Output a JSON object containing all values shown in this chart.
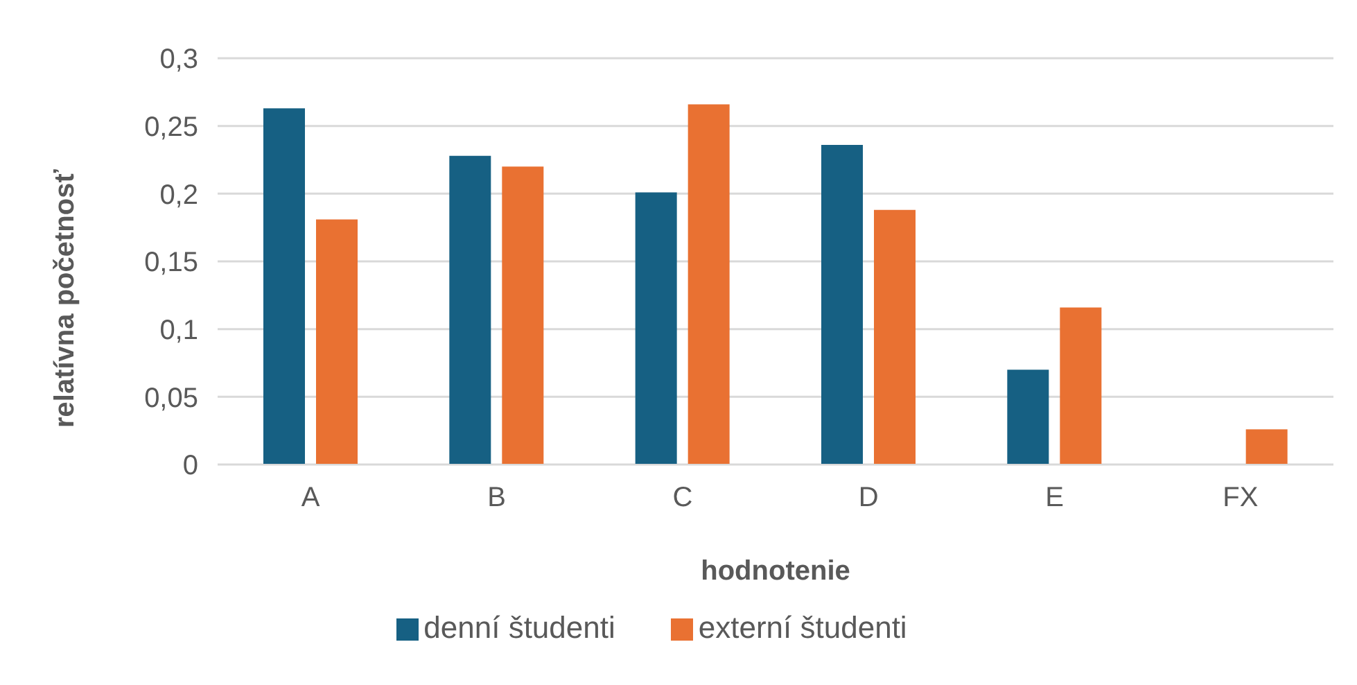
{
  "chart_data": {
    "type": "bar",
    "xlabel": "hodnotenie",
    "ylabel": "relatívna početnosť",
    "categories": [
      "A",
      "B",
      "C",
      "D",
      "E",
      "FX"
    ],
    "series": [
      {
        "name": "denní študenti",
        "color": "#166083",
        "values": [
          0.263,
          0.228,
          0.201,
          0.236,
          0.07,
          0
        ]
      },
      {
        "name": "externí študenti",
        "color": "#e97132",
        "values": [
          0.181,
          0.22,
          0.266,
          0.188,
          0.116,
          0.026
        ]
      }
    ],
    "ylim": [
      0,
      0.3
    ],
    "yticks": [
      {
        "value": 0,
        "label": "0"
      },
      {
        "value": 0.05,
        "label": "0,05"
      },
      {
        "value": 0.1,
        "label": "0,1"
      },
      {
        "value": 0.15,
        "label": "0,15"
      },
      {
        "value": 0.2,
        "label": "0,2"
      },
      {
        "value": 0.25,
        "label": "0,25"
      },
      {
        "value": 0.3,
        "label": "0,3"
      }
    ],
    "grid": "y",
    "legend": "bottom"
  }
}
